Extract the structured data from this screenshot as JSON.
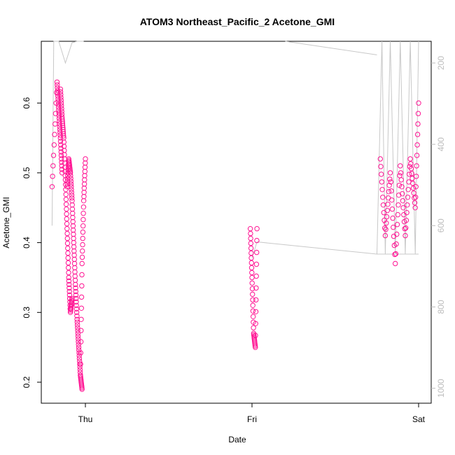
{
  "chart_data": {
    "type": "scatter",
    "title": "ATOM3 Northeast_Pacific_2 Acetone_GMI",
    "xlabel": "Date",
    "ylabel": "Acetone_GMI",
    "x_ticks": [
      "Thu",
      "Fri",
      "Sat"
    ],
    "x_range_days": [
      -0.21,
      2.02
    ],
    "ylim": [
      0.17,
      0.695
    ],
    "y_ticks": [
      0.2,
      0.3,
      0.4,
      0.5,
      0.6
    ],
    "y2_ticks": [
      200,
      400,
      600,
      800,
      1000
    ],
    "y2lim": [
      1040,
      125
    ],
    "series": [
      {
        "marker": "open-circle",
        "color": "#ff1493",
        "segments": [
          {
            "x": [
              -0.2,
              -0.17,
              -0.16,
              -0.15,
              -0.14
            ],
            "y": [
              0.48,
              0.63,
              0.59,
              0.55,
              0.5
            ]
          },
          {
            "x": [
              -0.15,
              -0.14,
              -0.13,
              -0.12,
              -0.11,
              -0.1,
              -0.09,
              -0.08
            ],
            "y": [
              0.62,
              0.58,
              0.55,
              0.49,
              0.42,
              0.35,
              0.3,
              0.32
            ]
          },
          {
            "x": [
              -0.11,
              -0.1,
              -0.09,
              -0.08,
              -0.07,
              -0.06,
              -0.05,
              -0.04,
              -0.03,
              -0.02
            ],
            "y": [
              0.48,
              0.52,
              0.5,
              0.46,
              0.4,
              0.34,
              0.29,
              0.25,
              0.21,
              0.19
            ]
          },
          {
            "x": [
              -0.03,
              -0.02,
              -0.01,
              0.0
            ],
            "y": [
              0.21,
              0.37,
              0.46,
              0.52
            ]
          },
          {
            "x": [
              0.99,
              1.0,
              1.01,
              1.02,
              1.03
            ],
            "y": [
              0.42,
              0.35,
              0.27,
              0.25,
              0.42
            ]
          },
          {
            "x": [
              1.77,
              1.8,
              1.83,
              1.86,
              1.89,
              1.92,
              1.95,
              1.98,
              2.0
            ],
            "y": [
              0.52,
              0.41,
              0.5,
              0.37,
              0.51,
              0.41,
              0.52,
              0.45,
              0.6
            ]
          }
        ]
      },
      {
        "marker": "line",
        "color": "#c8c8c8",
        "axis": "right",
        "segments": [
          {
            "x": [
              -0.2,
              -0.19,
              -0.16,
              -0.12,
              -0.08,
              -0.05,
              -0.02,
              -0.01
            ],
            "y": [
              600,
              125,
              130,
              200,
              150,
              125,
              140,
              125
            ]
          },
          {
            "x": [
              1.2,
              1.75
            ],
            "y": [
              125,
              180
            ]
          },
          {
            "x": [
              1.0,
              1.03,
              1.75,
              2.0
            ],
            "y": [
              680,
              640,
              670,
              670
            ]
          },
          {
            "x": [
              1.75,
              1.78,
              1.8,
              1.83,
              1.86,
              1.89,
              1.92,
              1.95,
              1.98,
              2.0
            ],
            "y": [
              670,
              125,
              670,
              125,
              670,
              125,
              670,
              125,
              670,
              125
            ]
          }
        ]
      }
    ]
  }
}
